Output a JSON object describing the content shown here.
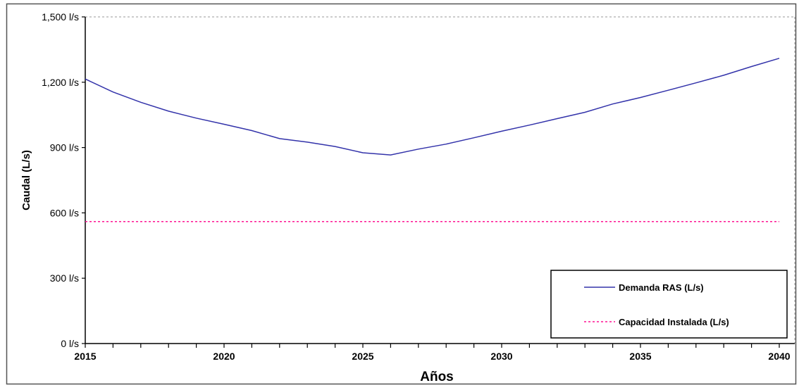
{
  "chart_data": {
    "type": "line",
    "title": "",
    "xlabel": "Años",
    "ylabel": "Caudal (L/s)",
    "xlim": [
      2015,
      2040
    ],
    "ylim": [
      0,
      1500
    ],
    "x_ticks": [
      "2015",
      "2020",
      "2025",
      "2030",
      "2035",
      "2040"
    ],
    "y_ticks": [
      "0 l/s",
      "300 l/s",
      "600 l/s",
      "900 l/s",
      "1,200 l/s",
      "1,500 l/s"
    ],
    "grid": false,
    "legend_position": "bottom-right",
    "x": [
      2015,
      2016,
      2017,
      2018,
      2019,
      2020,
      2021,
      2022,
      2023,
      2024,
      2025,
      2026,
      2027,
      2028,
      2029,
      2030,
      2031,
      2032,
      2033,
      2034,
      2035,
      2036,
      2037,
      2038,
      2039,
      2040
    ],
    "series": [
      {
        "name": "Demanda RAS (L/s)",
        "color": "#3333aa",
        "style": "solid",
        "values": [
          1215,
          1155,
          1108,
          1067,
          1035,
          1007,
          978,
          941,
          925,
          905,
          876,
          866,
          893,
          916,
          945,
          975,
          1003,
          1033,
          1062,
          1100,
          1130,
          1163,
          1197,
          1232,
          1272,
          1310
        ]
      },
      {
        "name": "Capacidad Instalada (L/s)",
        "color": "#ff1493",
        "style": "dashed",
        "values": [
          560,
          560,
          560,
          560,
          560,
          560,
          560,
          560,
          560,
          560,
          560,
          560,
          560,
          560,
          560,
          560,
          560,
          560,
          560,
          560,
          560,
          560,
          560,
          560,
          560,
          560
        ]
      }
    ]
  }
}
